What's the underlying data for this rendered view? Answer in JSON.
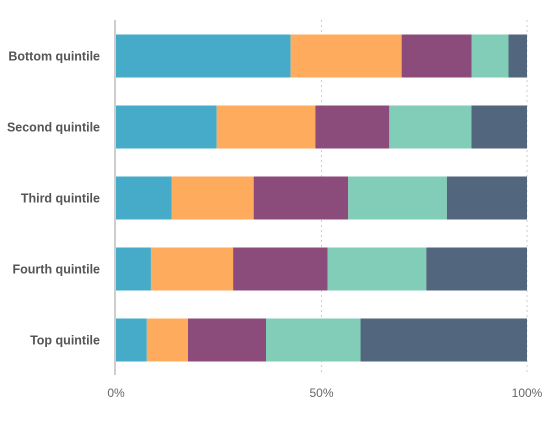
{
  "chart_data": {
    "type": "bar",
    "orientation": "horizontal",
    "stacked": true,
    "normalized": true,
    "title": "",
    "xlabel": "",
    "ylabel": "",
    "xlim": [
      0,
      100
    ],
    "x_ticks": [
      {
        "value": 0,
        "label": "0%"
      },
      {
        "value": 50,
        "label": "50%"
      },
      {
        "value": 100,
        "label": "100%"
      }
    ],
    "grid": true,
    "legend": "none",
    "categories": [
      "Bottom quintile",
      "Second quintile",
      "Third quintile",
      "Fourth quintile",
      "Top quintile"
    ],
    "series": [
      {
        "color": "#45abc9",
        "values": [
          42.5,
          24.5,
          13.5,
          8.5,
          7.5
        ]
      },
      {
        "color": "#ffab5e",
        "values": [
          27.0,
          24.0,
          20.0,
          20.0,
          10.0
        ]
      },
      {
        "color": "#8b4c7b",
        "values": [
          17.0,
          18.0,
          23.0,
          23.0,
          19.0
        ]
      },
      {
        "color": "#81cdb8",
        "values": [
          9.0,
          20.0,
          24.0,
          24.0,
          23.0
        ]
      },
      {
        "color": "#52667d",
        "values": [
          4.5,
          13.5,
          19.5,
          24.5,
          40.5
        ]
      }
    ]
  }
}
